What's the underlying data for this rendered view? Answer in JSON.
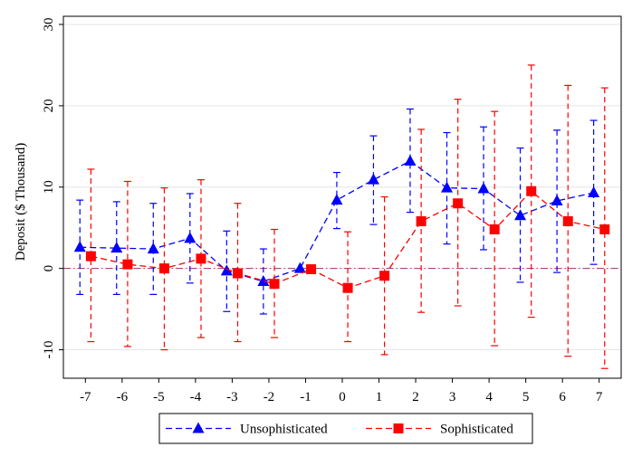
{
  "chart_data": {
    "type": "line",
    "ylabel": "Deposit ($ Thousand)",
    "xlabel": "",
    "x": [
      -7,
      -6,
      -5,
      -4,
      -3,
      -2,
      -1,
      0,
      1,
      2,
      3,
      4,
      5,
      6,
      7
    ],
    "xticks": [
      "-7",
      "-6",
      "-5",
      "-4",
      "-3",
      "-2",
      "-1",
      "0",
      "1",
      "2",
      "3",
      "4",
      "5",
      "6",
      "7"
    ],
    "xlim": [
      -7.6,
      7.6
    ],
    "ylim": [
      -13.5,
      31
    ],
    "yticks": [
      "-10",
      "0",
      "10",
      "20",
      "30"
    ],
    "ytick_values": [
      -10,
      0,
      10,
      20,
      30
    ],
    "grid": true,
    "reference_line_y": 0,
    "legend_position": "bottom",
    "series": [
      {
        "name": "Unsophisticated",
        "color": "#0000ff",
        "marker": "triangle",
        "x_offset": -0.15,
        "values": [
          2.6,
          2.5,
          2.4,
          3.7,
          -0.3,
          -1.6,
          0.0,
          8.4,
          10.9,
          13.2,
          9.9,
          9.8,
          6.5,
          8.3,
          9.3
        ],
        "ci_low": [
          -3.2,
          -3.2,
          -3.2,
          -1.8,
          -5.3,
          -5.6,
          null,
          4.9,
          5.4,
          6.9,
          3.0,
          2.3,
          -1.7,
          -0.5,
          0.5
        ],
        "ci_high": [
          8.4,
          8.2,
          8.0,
          9.2,
          4.6,
          2.4,
          null,
          11.8,
          16.3,
          19.6,
          16.7,
          17.4,
          14.8,
          17.0,
          18.2
        ]
      },
      {
        "name": "Sophisticated",
        "color": "#ff0000",
        "marker": "square",
        "x_offset": 0.15,
        "values": [
          1.5,
          0.5,
          0.0,
          1.2,
          -0.6,
          -1.9,
          -0.1,
          -2.4,
          -0.9,
          5.8,
          8.0,
          4.8,
          9.5,
          5.8,
          4.8
        ],
        "ci_low": [
          -9.0,
          -9.6,
          -10.0,
          -8.5,
          -9.0,
          -8.5,
          null,
          -9.0,
          -10.6,
          -5.4,
          -4.6,
          -9.5,
          -6.0,
          -10.8,
          -12.3
        ],
        "ci_high": [
          12.2,
          10.7,
          9.9,
          10.9,
          8.0,
          4.8,
          null,
          4.5,
          8.8,
          17.1,
          20.8,
          19.3,
          25.0,
          22.5,
          22.2
        ]
      }
    ]
  }
}
